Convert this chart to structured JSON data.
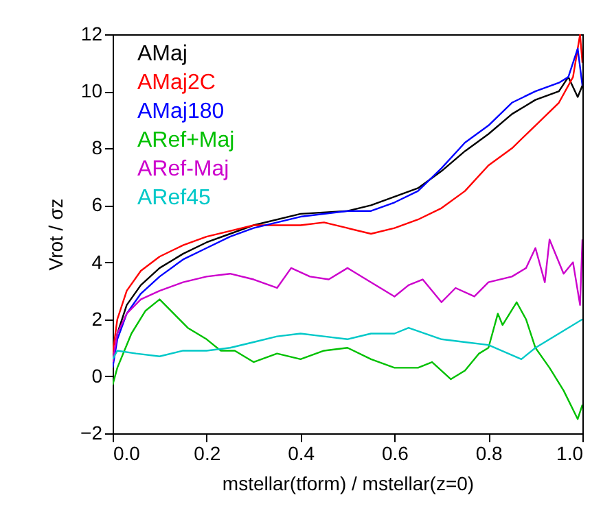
{
  "chart_data": {
    "type": "line",
    "xlabel": "mstellar(tform) / mstellar(z=0)",
    "ylabel": "Vrot / σz",
    "xlim": [
      0,
      1
    ],
    "ylim": [
      -2,
      12
    ],
    "xticks": [
      {
        "value": 0,
        "label": "0.0"
      },
      0.2,
      0.4,
      0.6,
      0.8,
      {
        "value": 1,
        "label": "1.0"
      }
    ],
    "yticks": [
      -2,
      0,
      2,
      4,
      6,
      8,
      10,
      12
    ],
    "grid": false,
    "legend": "top left",
    "marker": "none",
    "line_style": "solid",
    "series": [
      {
        "name": "AMaj",
        "color": "#000000",
        "x": [
          0,
          0.01,
          0.03,
          0.06,
          0.1,
          0.15,
          0.2,
          0.25,
          0.3,
          0.4,
          0.5,
          0.55,
          0.6,
          0.65,
          0.7,
          0.75,
          0.8,
          0.85,
          0.9,
          0.95,
          0.97,
          0.99,
          1.0
        ],
        "values": [
          0.4,
          1.5,
          2.5,
          3.2,
          3.8,
          4.3,
          4.7,
          5.0,
          5.3,
          5.7,
          5.8,
          6.0,
          6.3,
          6.6,
          7.2,
          7.9,
          8.5,
          9.2,
          9.7,
          10.0,
          10.5,
          9.8,
          10.2
        ]
      },
      {
        "name": "AMaj2C",
        "color": "#ff0000",
        "x": [
          0,
          0.01,
          0.03,
          0.06,
          0.1,
          0.15,
          0.2,
          0.25,
          0.3,
          0.4,
          0.45,
          0.5,
          0.55,
          0.6,
          0.65,
          0.7,
          0.75,
          0.8,
          0.85,
          0.9,
          0.95,
          0.98,
          0.995,
          1.0
        ],
        "values": [
          0.8,
          2.0,
          3.0,
          3.7,
          4.2,
          4.6,
          4.9,
          5.1,
          5.3,
          5.3,
          5.4,
          5.2,
          5.0,
          5.2,
          5.5,
          5.9,
          6.5,
          7.4,
          8.0,
          8.8,
          9.6,
          10.5,
          12,
          11
        ]
      },
      {
        "name": "AMaj180",
        "color": "#0000ff",
        "x": [
          0,
          0.01,
          0.03,
          0.06,
          0.1,
          0.15,
          0.2,
          0.25,
          0.3,
          0.4,
          0.5,
          0.55,
          0.6,
          0.65,
          0.7,
          0.75,
          0.8,
          0.85,
          0.9,
          0.95,
          0.97,
          0.99,
          1.0
        ],
        "values": [
          0.3,
          1.3,
          2.2,
          2.9,
          3.5,
          4.1,
          4.5,
          4.9,
          5.2,
          5.6,
          5.8,
          5.8,
          6.1,
          6.5,
          7.3,
          8.2,
          8.8,
          9.6,
          10.0,
          10.3,
          10.5,
          11.5,
          10.2
        ]
      },
      {
        "name": "ARef+Maj",
        "color": "#00c000",
        "x": [
          0,
          0.01,
          0.04,
          0.07,
          0.1,
          0.13,
          0.16,
          0.2,
          0.23,
          0.26,
          0.3,
          0.35,
          0.4,
          0.45,
          0.5,
          0.55,
          0.6,
          0.65,
          0.68,
          0.72,
          0.75,
          0.78,
          0.8,
          0.82,
          0.83,
          0.86,
          0.88,
          0.9,
          0.93,
          0.96,
          0.99,
          1.0
        ],
        "values": [
          -0.3,
          0.3,
          1.5,
          2.3,
          2.7,
          2.2,
          1.7,
          1.3,
          0.9,
          0.9,
          0.5,
          0.8,
          0.6,
          0.9,
          1.0,
          0.6,
          0.3,
          0.3,
          0.5,
          -0.1,
          0.2,
          0.8,
          1.0,
          2.2,
          1.8,
          2.6,
          2.0,
          1.0,
          0.3,
          -0.5,
          -1.5,
          -1.0
        ]
      },
      {
        "name": "ARef-Maj",
        "color": "#cc00cc",
        "x": [
          0,
          0.01,
          0.03,
          0.06,
          0.1,
          0.15,
          0.2,
          0.25,
          0.3,
          0.35,
          0.38,
          0.42,
          0.46,
          0.5,
          0.55,
          0.6,
          0.63,
          0.66,
          0.7,
          0.73,
          0.77,
          0.8,
          0.85,
          0.88,
          0.9,
          0.92,
          0.93,
          0.96,
          0.98,
          0.995,
          1.0
        ],
        "values": [
          0.5,
          1.5,
          2.2,
          2.7,
          3.0,
          3.3,
          3.5,
          3.6,
          3.4,
          3.1,
          3.8,
          3.5,
          3.4,
          3.8,
          3.3,
          2.8,
          3.2,
          3.4,
          2.6,
          3.1,
          2.8,
          3.3,
          3.5,
          3.8,
          4.5,
          3.3,
          4.8,
          3.6,
          4.0,
          2.5,
          4.8
        ]
      },
      {
        "name": "ARef45",
        "color": "#00c8c8",
        "x": [
          0,
          0.01,
          0.05,
          0.1,
          0.15,
          0.2,
          0.25,
          0.3,
          0.35,
          0.4,
          0.45,
          0.5,
          0.55,
          0.6,
          0.63,
          0.7,
          0.75,
          0.8,
          0.87,
          0.9,
          0.95,
          1.0
        ],
        "values": [
          0.6,
          0.9,
          0.8,
          0.7,
          0.9,
          0.9,
          1.0,
          1.2,
          1.4,
          1.5,
          1.4,
          1.3,
          1.5,
          1.5,
          1.7,
          1.3,
          1.2,
          1.1,
          0.6,
          1.0,
          1.5,
          2.0
        ]
      }
    ]
  }
}
